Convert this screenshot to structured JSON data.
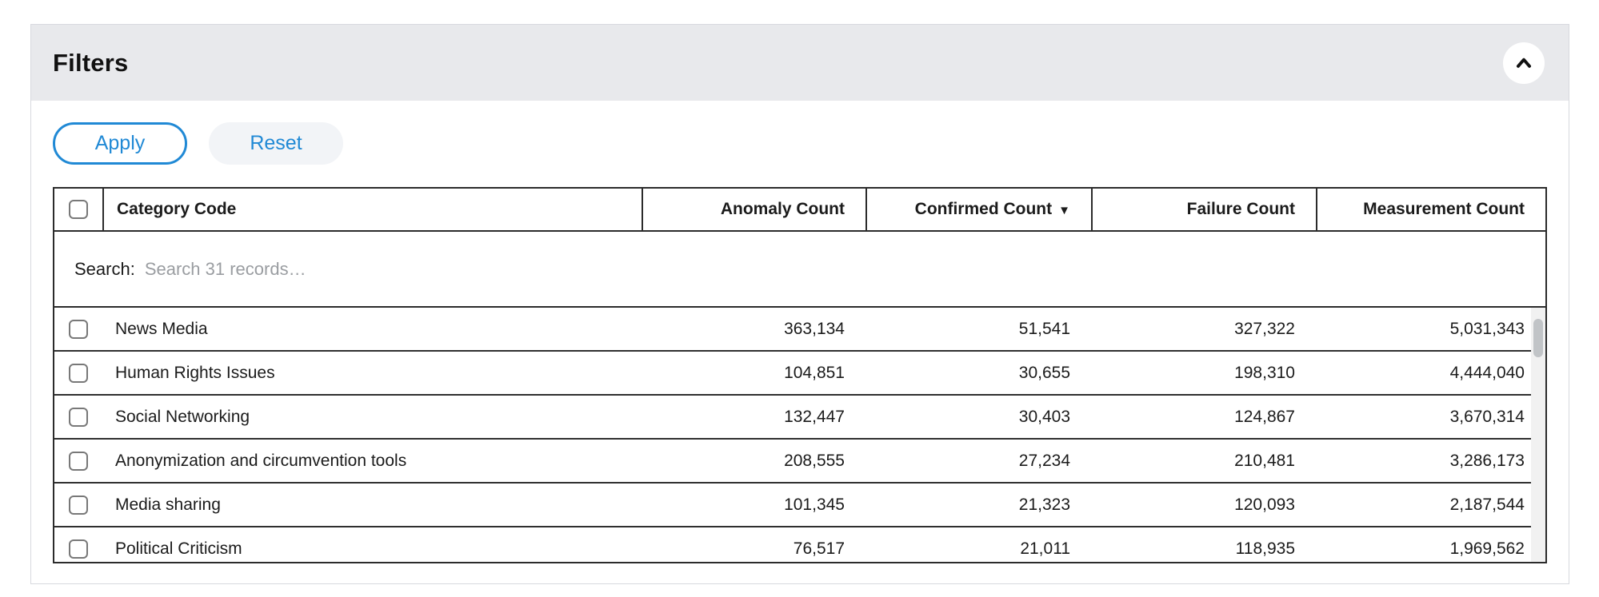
{
  "colors": {
    "accent_blue": "#2089d5",
    "header_bg": "#e8e9ec"
  },
  "panel": {
    "title": "Filters"
  },
  "toolbar": {
    "apply_label": "Apply",
    "reset_label": "Reset"
  },
  "table": {
    "columns": [
      {
        "label": "Category Code"
      },
      {
        "label": "Anomaly Count"
      },
      {
        "label": "Confirmed Count",
        "sorted": "desc"
      },
      {
        "label": "Failure Count"
      },
      {
        "label": "Measurement Count"
      }
    ],
    "sort_indicator": "▼",
    "search": {
      "label": "Search:",
      "placeholder": "Search 31 records…"
    },
    "rows": [
      {
        "category": "News Media",
        "anomaly": "363,134",
        "confirmed": "51,541",
        "failure": "327,322",
        "measurement": "5,031,343"
      },
      {
        "category": "Human Rights Issues",
        "anomaly": "104,851",
        "confirmed": "30,655",
        "failure": "198,310",
        "measurement": "4,444,040"
      },
      {
        "category": "Social Networking",
        "anomaly": "132,447",
        "confirmed": "30,403",
        "failure": "124,867",
        "measurement": "3,670,314"
      },
      {
        "category": "Anonymization and circumvention tools",
        "anomaly": "208,555",
        "confirmed": "27,234",
        "failure": "210,481",
        "measurement": "3,286,173"
      },
      {
        "category": "Media sharing",
        "anomaly": "101,345",
        "confirmed": "21,323",
        "failure": "120,093",
        "measurement": "2,187,544"
      },
      {
        "category": "Political Criticism",
        "anomaly": "76,517",
        "confirmed": "21,011",
        "failure": "118,935",
        "measurement": "1,969,562"
      }
    ]
  }
}
